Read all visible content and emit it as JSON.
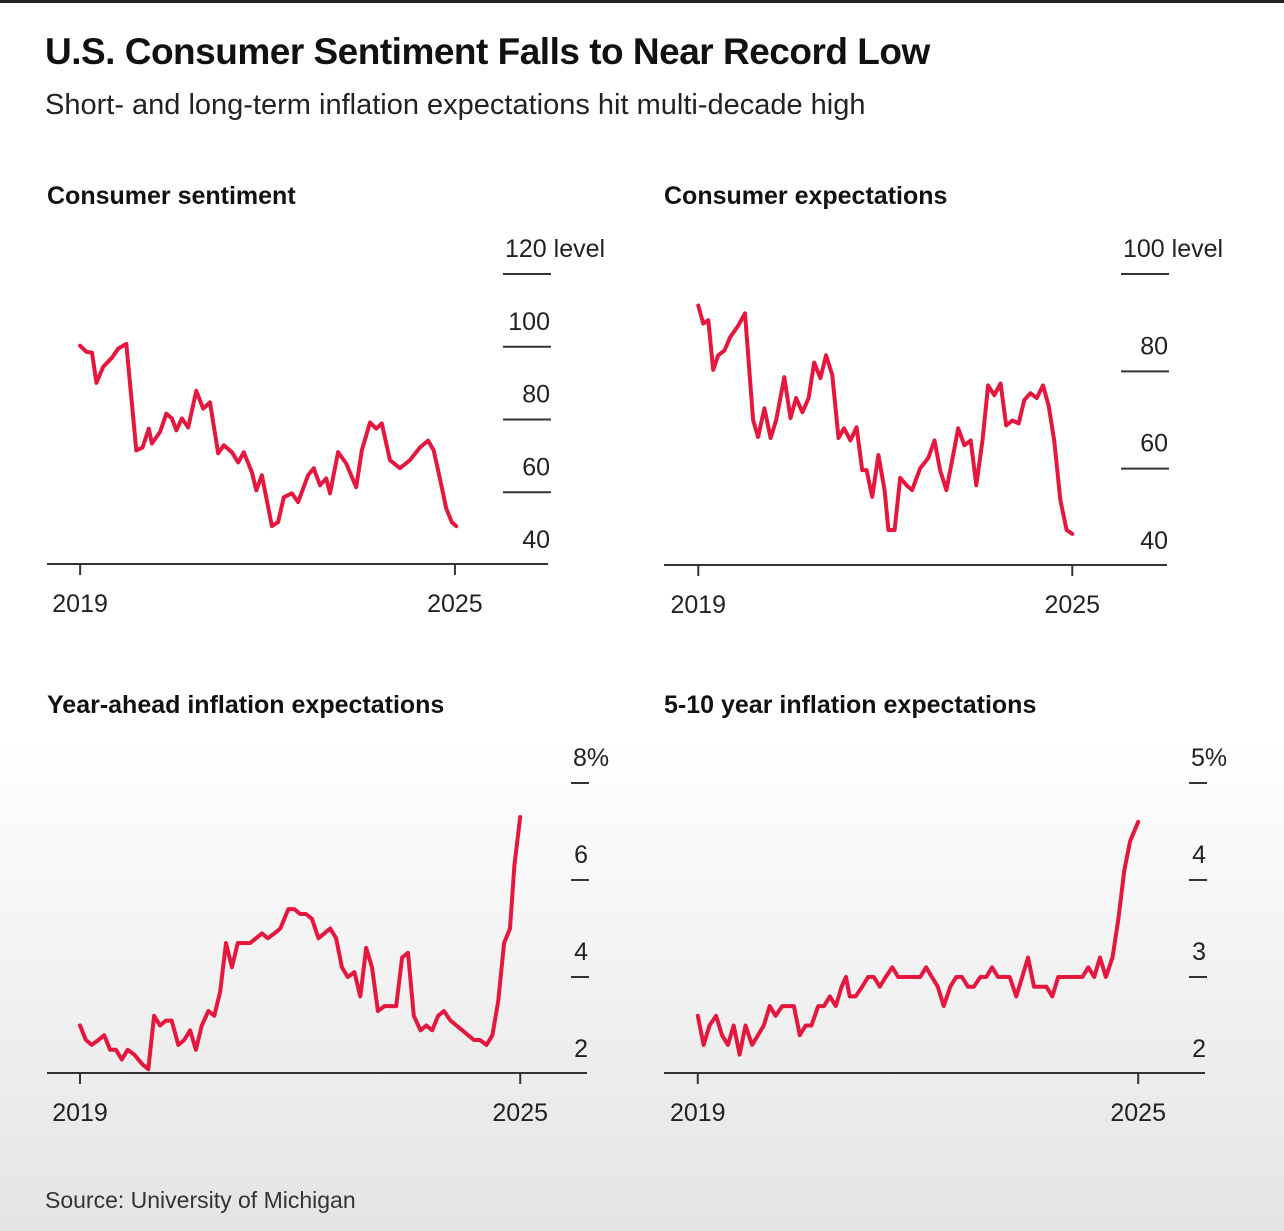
{
  "title": "U.S. Consumer Sentiment Falls to Near Record Low",
  "subtitle": "Short- and long-term inflation expectations hit multi-decade high",
  "source": "Source: University of Michigan",
  "chart_data": [
    {
      "type": "line",
      "title": "Consumer sentiment",
      "color": "#e5173f",
      "xlim": [
        2018.47,
        2026.49
      ],
      "xticks": [
        2019,
        2025
      ],
      "ylim": [
        40,
        120
      ],
      "yticks": [
        40,
        60,
        80,
        100,
        {
          "value": 120,
          "label": "120 level"
        }
      ],
      "x": [
        2019.0,
        2019.1,
        2019.19,
        2019.26,
        2019.37,
        2019.51,
        2019.61,
        2019.74,
        2019.9,
        2020.0,
        2020.1,
        2020.15,
        2020.28,
        2020.38,
        2020.47,
        2020.54,
        2020.63,
        2020.73,
        2020.86,
        2020.97,
        2021.08,
        2021.21,
        2021.3,
        2021.43,
        2021.53,
        2021.62,
        2021.75,
        2021.82,
        2021.91,
        2022.07,
        2022.17,
        2022.26,
        2022.39,
        2022.49,
        2022.65,
        2022.74,
        2022.84,
        2022.94,
        2023.0,
        2023.13,
        2023.26,
        2023.42,
        2023.51,
        2023.64,
        2023.74,
        2023.83,
        2023.96,
        2024.12,
        2024.28,
        2024.44,
        2024.57,
        2024.66,
        2024.76,
        2024.86,
        2024.95,
        2025.02
      ],
      "values": [
        100.3,
        98.6,
        98.4,
        90.1,
        94.5,
        97.0,
        99.5,
        100.8,
        71.5,
        72.3,
        77.5,
        73.4,
        76.6,
        81.6,
        80.3,
        77.0,
        80.3,
        77.8,
        87.9,
        83.0,
        84.7,
        70.7,
        72.9,
        71.0,
        68.2,
        71.0,
        65.5,
        60.5,
        64.7,
        50.7,
        51.8,
        58.6,
        59.7,
        57.3,
        64.7,
        66.6,
        61.9,
        63.8,
        59.7,
        71.0,
        67.9,
        61.4,
        71.5,
        79.2,
        77.5,
        78.9,
        68.8,
        66.6,
        68.8,
        72.3,
        74.2,
        71.5,
        63.8,
        55.6,
        51.8,
        50.7
      ]
    },
    {
      "type": "line",
      "title": "Consumer expectations",
      "color": "#e5173f",
      "xlim": [
        2018.45,
        2026.52
      ],
      "xticks": [
        2019,
        2025
      ],
      "ylim": [
        40,
        100
      ],
      "yticks": [
        40,
        60,
        80,
        {
          "value": 100,
          "label": "100 level"
        }
      ],
      "x": [
        2019.0,
        2019.08,
        2019.16,
        2019.24,
        2019.32,
        2019.42,
        2019.51,
        2019.64,
        2019.75,
        2019.88,
        2019.96,
        2020.06,
        2020.16,
        2020.25,
        2020.38,
        2020.48,
        2020.57,
        2020.67,
        2020.77,
        2020.86,
        2020.96,
        2021.05,
        2021.15,
        2021.25,
        2021.34,
        2021.44,
        2021.54,
        2021.63,
        2021.7,
        2021.79,
        2021.89,
        2021.99,
        2022.05,
        2022.15,
        2022.24,
        2022.34,
        2022.43,
        2022.56,
        2022.69,
        2022.79,
        2022.88,
        2022.98,
        2023.08,
        2023.17,
        2023.27,
        2023.37,
        2023.46,
        2023.56,
        2023.65,
        2023.75,
        2023.85,
        2023.94,
        2024.04,
        2024.14,
        2024.23,
        2024.33,
        2024.43,
        2024.53,
        2024.62,
        2024.71,
        2024.81,
        2024.91,
        2025.0
      ],
      "values": [
        93.5,
        89.8,
        90.5,
        80.3,
        83.3,
        84.3,
        87.0,
        89.4,
        91.9,
        70.0,
        66.5,
        72.4,
        66.3,
        70.0,
        78.8,
        70.4,
        74.5,
        71.6,
        74.5,
        81.8,
        78.6,
        83.3,
        79.2,
        66.3,
        68.3,
        65.8,
        68.5,
        59.7,
        59.7,
        54.2,
        62.8,
        55.6,
        47.4,
        47.4,
        58.1,
        56.6,
        55.6,
        60.1,
        62.2,
        65.8,
        59.7,
        55.6,
        62.2,
        68.3,
        64.8,
        65.8,
        56.6,
        65.8,
        77.1,
        75.1,
        77.5,
        68.9,
        69.9,
        69.3,
        74.1,
        75.5,
        74.5,
        77.1,
        73.0,
        65.8,
        53.5,
        47.4,
        46.6
      ]
    },
    {
      "type": "line",
      "title": "Year-ahead inflation expectations",
      "color": "#e5173f",
      "xlim": [
        2018.55,
        2025.91
      ],
      "xticks": [
        2019,
        2025
      ],
      "ylim": [
        2,
        8
      ],
      "yticks": [
        2,
        4,
        6,
        {
          "value": 8,
          "label": "8%"
        }
      ],
      "x": [
        2019.0,
        2019.08,
        2019.16,
        2019.25,
        2019.33,
        2019.41,
        2019.49,
        2019.57,
        2019.65,
        2019.74,
        2019.85,
        2019.93,
        2020.01,
        2020.09,
        2020.17,
        2020.25,
        2020.34,
        2020.42,
        2020.5,
        2020.58,
        2020.66,
        2020.75,
        2020.83,
        2020.91,
        2020.99,
        2021.07,
        2021.15,
        2021.24,
        2021.32,
        2021.4,
        2021.48,
        2021.56,
        2021.65,
        2021.73,
        2021.84,
        2021.92,
        2022.0,
        2022.08,
        2022.16,
        2022.25,
        2022.33,
        2022.41,
        2022.49,
        2022.57,
        2022.65,
        2022.74,
        2022.82,
        2022.9,
        2022.98,
        2023.06,
        2023.15,
        2023.23,
        2023.31,
        2023.39,
        2023.47,
        2023.55,
        2023.64,
        2023.72,
        2023.8,
        2023.88,
        2023.96,
        2024.05,
        2024.13,
        2024.21,
        2024.29,
        2024.37,
        2024.45,
        2024.54,
        2024.62,
        2024.7,
        2024.78,
        2024.86,
        2024.92,
        2025.0
      ],
      "values": [
        3.0,
        2.7,
        2.6,
        2.7,
        2.8,
        2.5,
        2.5,
        2.3,
        2.5,
        2.4,
        2.2,
        2.1,
        3.2,
        3.0,
        3.1,
        3.1,
        2.6,
        2.7,
        2.9,
        2.5,
        3.0,
        3.3,
        3.2,
        3.7,
        4.7,
        4.2,
        4.7,
        4.7,
        4.7,
        4.8,
        4.9,
        4.8,
        4.9,
        5.0,
        5.4,
        5.4,
        5.3,
        5.3,
        5.2,
        4.8,
        4.9,
        5.0,
        4.8,
        4.2,
        4.0,
        4.1,
        3.6,
        4.6,
        4.2,
        3.3,
        3.4,
        3.4,
        3.4,
        4.4,
        4.5,
        3.2,
        2.9,
        3.0,
        2.9,
        3.2,
        3.3,
        3.1,
        3.0,
        2.9,
        2.8,
        2.7,
        2.7,
        2.6,
        2.8,
        3.5,
        4.7,
        5.0,
        6.3,
        7.3
      ]
    },
    {
      "type": "line",
      "title": "5-10 year inflation expectations",
      "color": "#e5173f",
      "xlim": [
        2018.54,
        2025.91
      ],
      "xticks": [
        2019,
        2025
      ],
      "ylim": [
        2,
        5
      ],
      "yticks": [
        2,
        3,
        4,
        {
          "value": 5,
          "label": "5%"
        }
      ],
      "x": [
        2019.0,
        2019.08,
        2019.16,
        2019.25,
        2019.33,
        2019.41,
        2019.49,
        2019.57,
        2019.65,
        2019.74,
        2019.82,
        2019.9,
        2019.98,
        2020.06,
        2020.15,
        2020.23,
        2020.31,
        2020.39,
        2020.47,
        2020.55,
        2020.64,
        2020.72,
        2020.8,
        2020.88,
        2020.96,
        2021.02,
        2021.07,
        2021.15,
        2021.24,
        2021.32,
        2021.4,
        2021.48,
        2021.56,
        2021.65,
        2021.73,
        2021.81,
        2021.92,
        2022.03,
        2022.11,
        2022.19,
        2022.27,
        2022.35,
        2022.44,
        2022.52,
        2022.6,
        2022.68,
        2022.76,
        2022.85,
        2022.93,
        2023.01,
        2023.09,
        2023.17,
        2023.25,
        2023.34,
        2023.42,
        2023.5,
        2023.58,
        2023.66,
        2023.75,
        2023.83,
        2023.91,
        2023.99,
        2024.07,
        2024.15,
        2024.24,
        2024.32,
        2024.4,
        2024.48,
        2024.56,
        2024.65,
        2024.73,
        2024.81,
        2024.89,
        2025.0
      ],
      "values": [
        2.6,
        2.3,
        2.5,
        2.6,
        2.4,
        2.3,
        2.5,
        2.2,
        2.5,
        2.3,
        2.4,
        2.5,
        2.7,
        2.6,
        2.7,
        2.7,
        2.7,
        2.4,
        2.5,
        2.5,
        2.7,
        2.7,
        2.8,
        2.7,
        2.9,
        3.0,
        2.8,
        2.8,
        2.9,
        3.0,
        3.0,
        2.9,
        3.0,
        3.1,
        3.0,
        3.0,
        3.0,
        3.0,
        3.1,
        3.0,
        2.9,
        2.7,
        2.9,
        3.0,
        3.0,
        2.9,
        2.9,
        3.0,
        3.0,
        3.1,
        3.0,
        3.0,
        3.0,
        2.8,
        3.0,
        3.2,
        2.9,
        2.9,
        2.9,
        2.8,
        3.0,
        3.0,
        3.0,
        3.0,
        3.0,
        3.1,
        3.0,
        3.2,
        3.0,
        3.2,
        3.6,
        4.1,
        4.4,
        4.6
      ]
    }
  ]
}
